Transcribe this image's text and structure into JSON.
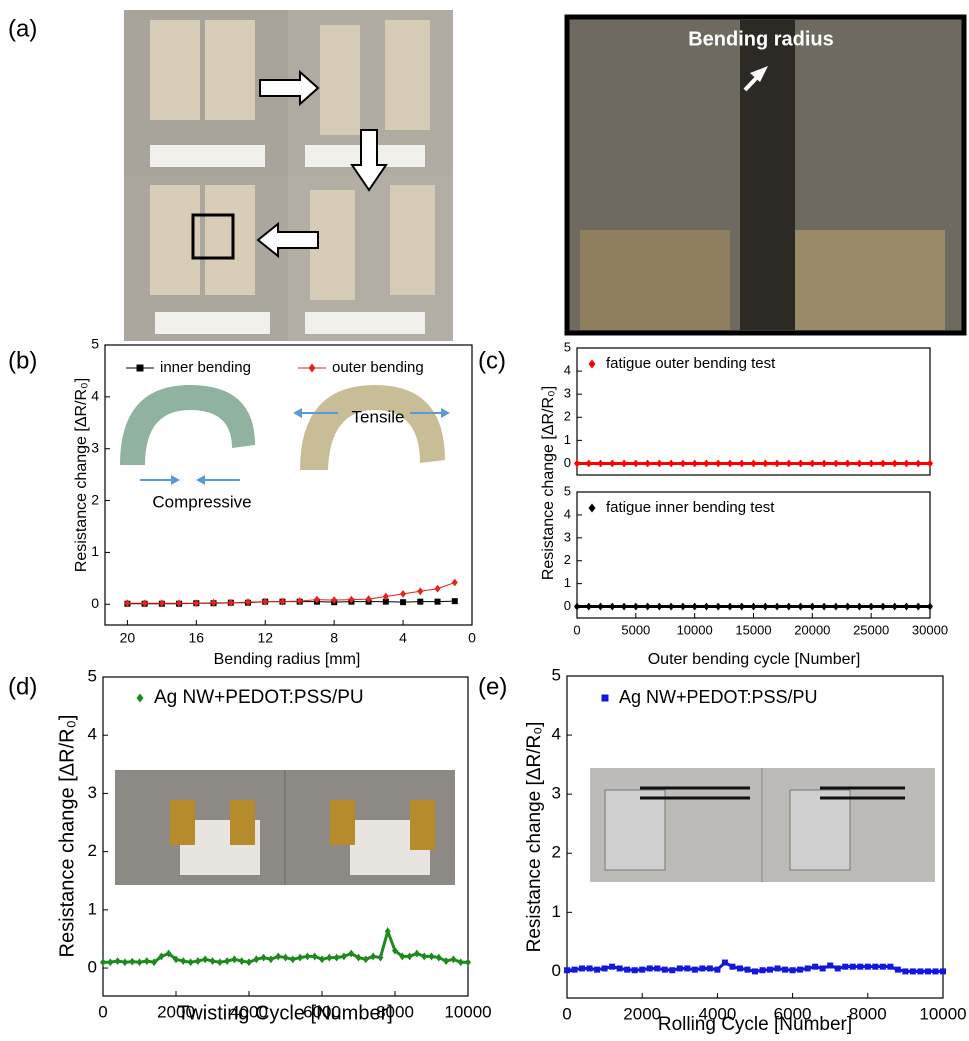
{
  "panel_labels": [
    "(a)",
    "(b)",
    "(c)",
    "(d)",
    "(e)"
  ],
  "photo_annotation": "Bending radius",
  "chart_data": [
    {
      "type": "line",
      "xlabel": "Bending radius [mm]",
      "ylabel": "Resistance change [ΔR/R₀]",
      "x": [
        20,
        19,
        18,
        17,
        16,
        15,
        14,
        13,
        12,
        11,
        10,
        9,
        8,
        7,
        6,
        5,
        4,
        3,
        2,
        1
      ],
      "series": [
        {
          "name": "inner bending",
          "color": "#000000",
          "marker": "square",
          "values": [
            0.01,
            0.01,
            0.01,
            0.01,
            0.02,
            0.02,
            0.03,
            0.03,
            0.05,
            0.05,
            0.05,
            0.05,
            0.04,
            0.05,
            0.05,
            0.05,
            0.04,
            0.05,
            0.05,
            0.06
          ]
        },
        {
          "name": "outer bending",
          "color": "#e8211b",
          "marker": "diamond",
          "values": [
            0.02,
            0.02,
            0.02,
            0.02,
            0.02,
            0.03,
            0.03,
            0.04,
            0.05,
            0.05,
            0.06,
            0.09,
            0.08,
            0.09,
            0.1,
            0.15,
            0.2,
            0.25,
            0.3,
            0.42
          ]
        }
      ],
      "xlim": [
        21.3,
        0
      ],
      "xticks": [
        20,
        16,
        12,
        8,
        4,
        0
      ],
      "ylim": [
        -0.4,
        5
      ],
      "yticks": [
        0,
        1,
        2,
        3,
        4,
        5
      ],
      "annotations": [
        "Tensile",
        "Compressive"
      ]
    },
    {
      "type": "scatter",
      "ylabel": "Resistance change [ΔR/R₀]",
      "x": [
        0,
        1000,
        2000,
        3000,
        4000,
        5000,
        6000,
        7000,
        8000,
        9000,
        10000,
        11000,
        12000,
        13000,
        14000,
        15000,
        16000,
        17000,
        18000,
        19000,
        20000,
        21000,
        22000,
        23000,
        24000,
        25000,
        26000,
        27000,
        28000,
        29000,
        30000
      ],
      "series": [
        {
          "name": "fatigue outer bending test",
          "color": "#ff0000",
          "marker": "diamond",
          "values": [
            0,
            0,
            0,
            0,
            0,
            0,
            0,
            0,
            0,
            0,
            0,
            0,
            0,
            0,
            0,
            0,
            0,
            0,
            0,
            0,
            0,
            0,
            0,
            0,
            0,
            0,
            0,
            0,
            0,
            0,
            0
          ]
        }
      ],
      "xlim": [
        0,
        30000
      ],
      "ylim": [
        -0.5,
        5
      ],
      "yticks": [
        0,
        1,
        2,
        3,
        4,
        5
      ]
    },
    {
      "type": "scatter",
      "xlabel": "Outer bending cycle [Number]",
      "x": [
        0,
        1000,
        2000,
        3000,
        4000,
        5000,
        6000,
        7000,
        8000,
        9000,
        10000,
        11000,
        12000,
        13000,
        14000,
        15000,
        16000,
        17000,
        18000,
        19000,
        20000,
        21000,
        22000,
        23000,
        24000,
        25000,
        26000,
        27000,
        28000,
        29000,
        30000
      ],
      "series": [
        {
          "name": "fatigue inner bending test",
          "color": "#000000",
          "marker": "diamond",
          "values": [
            0,
            0,
            0,
            0,
            0,
            0,
            0,
            0,
            0,
            0,
            0,
            0,
            0,
            0,
            0,
            0,
            0,
            0,
            0,
            0,
            0,
            0,
            0,
            0,
            0,
            0,
            0,
            0,
            0,
            0,
            0
          ]
        }
      ],
      "xlim": [
        0,
        30000
      ],
      "xticks": [
        0,
        5000,
        10000,
        15000,
        20000,
        25000,
        30000
      ],
      "ylim": [
        -0.5,
        5
      ],
      "yticks": [
        0,
        1,
        2,
        3,
        4,
        5
      ]
    },
    {
      "type": "scatter",
      "xlabel": "Twisting Cycle [Number]",
      "ylabel": "Resistance change [ΔR/R₀]",
      "x": [
        0,
        200,
        400,
        600,
        800,
        1000,
        1200,
        1400,
        1600,
        1800,
        2000,
        2200,
        2400,
        2600,
        2800,
        3000,
        3200,
        3400,
        3600,
        3800,
        4000,
        4200,
        4400,
        4600,
        4800,
        5000,
        5200,
        5400,
        5600,
        5800,
        6000,
        6200,
        6400,
        6600,
        6800,
        7000,
        7200,
        7400,
        7600,
        7800,
        8000,
        8200,
        8400,
        8600,
        8800,
        9000,
        9200,
        9400,
        9600,
        9800,
        10000
      ],
      "series": [
        {
          "name": "Ag NW+PEDOT:PSS/PU",
          "color": "#1e8a1e",
          "marker": "diamond",
          "values": [
            0.1,
            0.1,
            0.12,
            0.1,
            0.11,
            0.1,
            0.12,
            0.1,
            0.2,
            0.25,
            0.15,
            0.12,
            0.1,
            0.12,
            0.15,
            0.12,
            0.1,
            0.12,
            0.15,
            0.12,
            0.1,
            0.15,
            0.18,
            0.15,
            0.2,
            0.18,
            0.15,
            0.18,
            0.2,
            0.2,
            0.15,
            0.18,
            0.18,
            0.2,
            0.25,
            0.18,
            0.15,
            0.2,
            0.18,
            0.63,
            0.3,
            0.2,
            0.2,
            0.25,
            0.2,
            0.2,
            0.18,
            0.12,
            0.15,
            0.1,
            0.1
          ]
        }
      ],
      "xlim": [
        0,
        10000
      ],
      "xticks": [
        0,
        2000,
        4000,
        6000,
        8000,
        10000
      ],
      "ylim": [
        -0.48,
        5
      ],
      "yticks": [
        0,
        1,
        2,
        3,
        4,
        5
      ]
    },
    {
      "type": "scatter",
      "xlabel": "Rolling Cycle [Number]",
      "ylabel": "Resistance change [ΔR/R₀]",
      "x": [
        0,
        200,
        400,
        600,
        800,
        1000,
        1200,
        1400,
        1600,
        1800,
        2000,
        2200,
        2400,
        2600,
        2800,
        3000,
        3200,
        3400,
        3600,
        3800,
        4000,
        4200,
        4400,
        4600,
        4800,
        5000,
        5200,
        5400,
        5600,
        5800,
        6000,
        6200,
        6400,
        6600,
        6800,
        7000,
        7200,
        7400,
        7600,
        7800,
        8000,
        8200,
        8400,
        8600,
        8800,
        9000,
        9200,
        9400,
        9600,
        9800,
        10000
      ],
      "series": [
        {
          "name": "Ag NW+PEDOT:PSS/PU",
          "color": "#1515e0",
          "marker": "square",
          "values": [
            0.02,
            0.03,
            0.05,
            0.05,
            0.03,
            0.05,
            0.08,
            0.05,
            0.03,
            0.02,
            0.03,
            0.05,
            0.05,
            0.03,
            0.02,
            0.05,
            0.05,
            0.03,
            0.05,
            0.05,
            0.03,
            0.15,
            0.08,
            0.05,
            0.03,
            0.0,
            0.02,
            0.03,
            0.05,
            0.03,
            0.02,
            0.03,
            0.05,
            0.08,
            0.05,
            0.1,
            0.05,
            0.08,
            0.08,
            0.08,
            0.08,
            0.08,
            0.08,
            0.08,
            0.03,
            0.0,
            0.0,
            0.0,
            0.0,
            0.0,
            0.0
          ]
        }
      ],
      "xlim": [
        0,
        10000
      ],
      "xticks": [
        0,
        2000,
        4000,
        6000,
        8000,
        10000
      ],
      "ylim": [
        -0.45,
        5
      ],
      "yticks": [
        0,
        1,
        2,
        3,
        4,
        5
      ]
    }
  ]
}
